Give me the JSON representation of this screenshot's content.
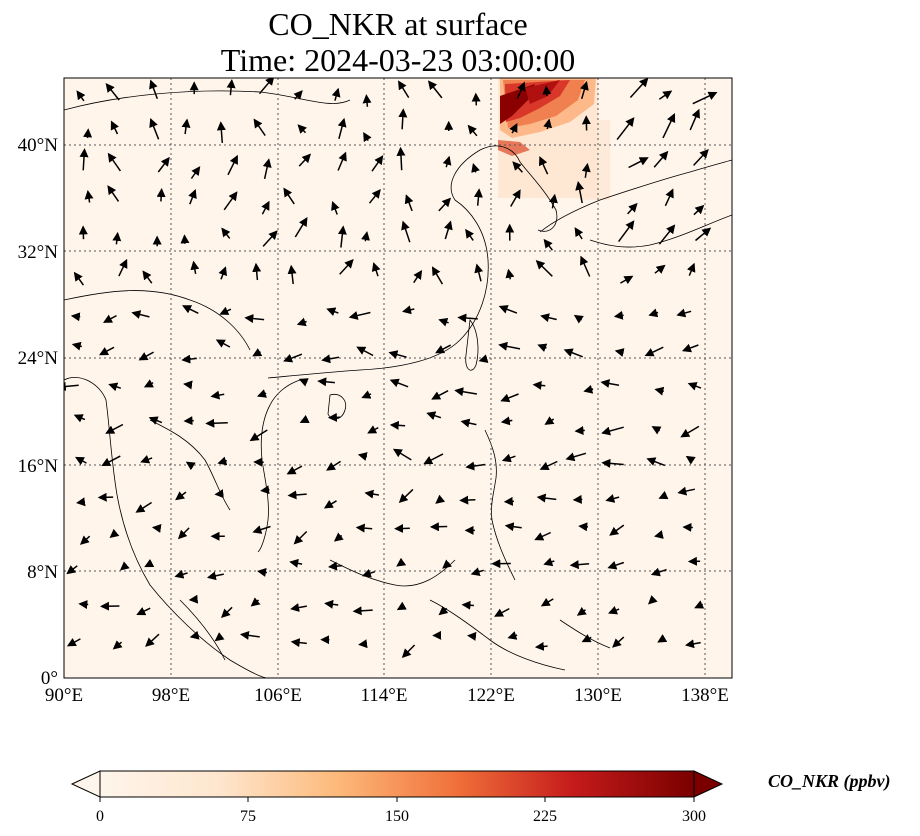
{
  "title": {
    "line1": "CO_NKR at surface",
    "line2": "Time: 2024-03-23 03:00:00"
  },
  "map": {
    "lon_range": [
      90,
      140
    ],
    "lat_range": [
      0,
      45
    ],
    "lon_ticks": [
      "90°E",
      "98°E",
      "106°E",
      "114°E",
      "122°E",
      "130°E",
      "138°E"
    ],
    "lat_ticks": [
      "0°",
      "8°N",
      "16°N",
      "24°N",
      "32°N",
      "40°N"
    ],
    "gridlines": "dotted",
    "background_color": "#fff5eb",
    "plume_colors": [
      "#fdd3a8",
      "#f08050",
      "#c51b1b",
      "#7f0000"
    ]
  },
  "colorbar": {
    "label": "CO_NKR (ppbv)",
    "ticks": [
      "0",
      "75",
      "150",
      "225",
      "300"
    ],
    "range": [
      0,
      300
    ],
    "extend": "both",
    "colors": [
      "#fff5eb",
      "#fdd0a2",
      "#fd8d3c",
      "#d94801",
      "#a50f15",
      "#67000d"
    ]
  }
}
